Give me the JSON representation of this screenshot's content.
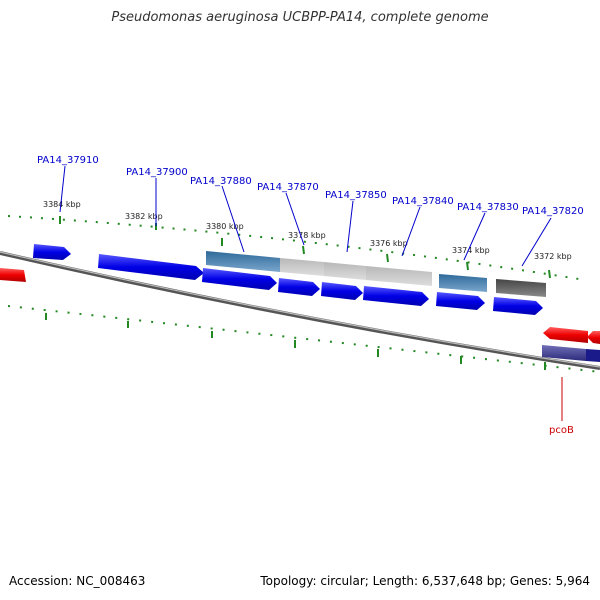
{
  "title": "Pseudomonas aeruginosa UCBPP-PA14, complete genome",
  "footer": {
    "accession": "Accession: NC_008463",
    "stats": "Topology: circular; Length: 6,537,648 bp; Genes: 5,964"
  },
  "colors": {
    "forward_gene": "#0000e6",
    "reverse_gene": "#ee0000",
    "gene_label": "#0000cc",
    "reverse_label": "#cc0000",
    "tick": "#228822",
    "backbone": "#808080"
  },
  "scale_labels": [
    "3384 kbp",
    "3382 kbp",
    "3380 kbp",
    "3378 kbp",
    "3376 kbp",
    "3374 kbp",
    "3372 kbp"
  ],
  "gene_labels": [
    "PA14_37910",
    "PA14_37900",
    "PA14_37880",
    "PA14_37870",
    "PA14_37850",
    "PA14_37840",
    "PA14_37830",
    "PA14_37820",
    "pcoB"
  ]
}
